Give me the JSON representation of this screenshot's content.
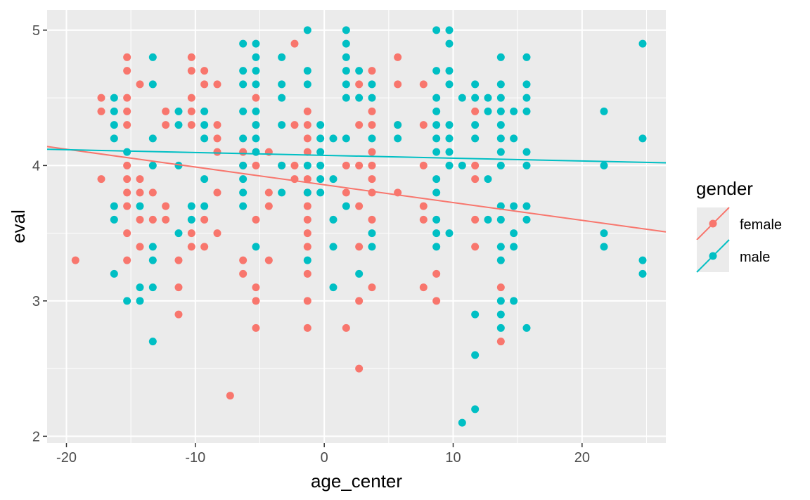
{
  "chart_data": {
    "type": "scatter",
    "xlabel": "age_center",
    "ylabel": "eval",
    "xlim": [
      -21.5,
      26.5
    ],
    "ylim": [
      1.95,
      5.15
    ],
    "x_ticks": [
      -20,
      -10,
      0,
      10,
      20
    ],
    "x_tick_labels": [
      "-20",
      "-10",
      "0",
      "10",
      "20"
    ],
    "y_ticks": [
      2,
      3,
      4,
      5
    ],
    "y_tick_labels": [
      "2",
      "3",
      "4",
      "5"
    ],
    "grid": true,
    "legend": {
      "title": "gender",
      "position": "right"
    },
    "series": [
      {
        "name": "female",
        "color": "#F8766D",
        "fit_line": {
          "x": [
            -21.5,
            26.5
          ],
          "y": [
            4.14,
            3.51
          ]
        },
        "points": [
          [
            -19.3,
            3.3
          ],
          [
            -17.3,
            4.5
          ],
          [
            -17.3,
            4.4
          ],
          [
            -17.3,
            3.9
          ],
          [
            -15.3,
            4.8
          ],
          [
            -15.3,
            4.7
          ],
          [
            -15.3,
            4.5
          ],
          [
            -15.3,
            4.4
          ],
          [
            -15.3,
            4.3
          ],
          [
            -15.3,
            4.0
          ],
          [
            -15.3,
            3.9
          ],
          [
            -15.3,
            3.8
          ],
          [
            -15.3,
            3.7
          ],
          [
            -15.3,
            3.5
          ],
          [
            -15.3,
            3.3
          ],
          [
            -14.3,
            4.6
          ],
          [
            -14.3,
            3.9
          ],
          [
            -14.3,
            3.8
          ],
          [
            -14.3,
            3.6
          ],
          [
            -14.3,
            3.4
          ],
          [
            -13.3,
            3.8
          ],
          [
            -13.3,
            3.6
          ],
          [
            -12.3,
            4.4
          ],
          [
            -12.3,
            4.3
          ],
          [
            -12.3,
            3.7
          ],
          [
            -12.3,
            3.6
          ],
          [
            -11.3,
            3.3
          ],
          [
            -11.3,
            3.1
          ],
          [
            -11.3,
            2.9
          ],
          [
            -10.3,
            4.8
          ],
          [
            -10.3,
            4.7
          ],
          [
            -10.3,
            4.5
          ],
          [
            -10.3,
            4.4
          ],
          [
            -10.3,
            4.3
          ],
          [
            -10.3,
            3.5
          ],
          [
            -10.3,
            3.4
          ],
          [
            -9.3,
            4.7
          ],
          [
            -9.3,
            4.6
          ],
          [
            -9.3,
            3.6
          ],
          [
            -9.3,
            3.4
          ],
          [
            -8.3,
            4.6
          ],
          [
            -8.3,
            4.3
          ],
          [
            -8.3,
            4.2
          ],
          [
            -8.3,
            4.1
          ],
          [
            -8.3,
            3.8
          ],
          [
            -8.3,
            3.5
          ],
          [
            -7.3,
            2.3
          ],
          [
            -6.3,
            4.1
          ],
          [
            -6.3,
            4.0
          ],
          [
            -6.3,
            3.3
          ],
          [
            -6.3,
            3.2
          ],
          [
            -5.3,
            4.5
          ],
          [
            -5.3,
            4.3
          ],
          [
            -5.3,
            4.1
          ],
          [
            -5.3,
            4.0
          ],
          [
            -5.3,
            3.6
          ],
          [
            -5.3,
            3.1
          ],
          [
            -5.3,
            3.0
          ],
          [
            -5.3,
            2.8
          ],
          [
            -4.3,
            4.1
          ],
          [
            -4.3,
            3.8
          ],
          [
            -4.3,
            3.7
          ],
          [
            -4.3,
            3.3
          ],
          [
            -3.3,
            4.0
          ],
          [
            -2.3,
            4.9
          ],
          [
            -2.3,
            4.3
          ],
          [
            -2.3,
            4.0
          ],
          [
            -2.3,
            3.9
          ],
          [
            -1.3,
            4.4
          ],
          [
            -1.3,
            4.3
          ],
          [
            -1.3,
            4.2
          ],
          [
            -1.3,
            4.1
          ],
          [
            -1.3,
            3.9
          ],
          [
            -1.3,
            3.8
          ],
          [
            -1.3,
            3.7
          ],
          [
            -1.3,
            3.6
          ],
          [
            -1.3,
            3.5
          ],
          [
            -1.3,
            3.4
          ],
          [
            -1.3,
            3.2
          ],
          [
            -1.3,
            3.0
          ],
          [
            -1.3,
            2.8
          ],
          [
            1.7,
            4.0
          ],
          [
            1.7,
            3.8
          ],
          [
            1.7,
            2.8
          ],
          [
            2.7,
            4.6
          ],
          [
            2.7,
            4.3
          ],
          [
            2.7,
            4.0
          ],
          [
            2.7,
            3.7
          ],
          [
            2.7,
            3.4
          ],
          [
            2.7,
            3.0
          ],
          [
            2.7,
            2.5
          ],
          [
            3.7,
            4.7
          ],
          [
            3.7,
            4.4
          ],
          [
            3.7,
            4.3
          ],
          [
            3.7,
            4.1
          ],
          [
            3.7,
            4.0
          ],
          [
            3.7,
            3.9
          ],
          [
            3.7,
            3.8
          ],
          [
            3.7,
            3.6
          ],
          [
            3.7,
            3.1
          ],
          [
            5.7,
            4.8
          ],
          [
            5.7,
            4.6
          ],
          [
            5.7,
            4.3
          ],
          [
            5.7,
            3.8
          ],
          [
            7.7,
            4.6
          ],
          [
            7.7,
            4.3
          ],
          [
            7.7,
            4.0
          ],
          [
            7.7,
            3.7
          ],
          [
            7.7,
            3.6
          ],
          [
            7.7,
            3.1
          ],
          [
            8.7,
            3.2
          ],
          [
            8.7,
            3.0
          ],
          [
            11.7,
            4.4
          ],
          [
            11.7,
            4.0
          ],
          [
            11.7,
            3.9
          ],
          [
            11.7,
            3.6
          ],
          [
            11.7,
            3.4
          ],
          [
            13.7,
            3.1
          ],
          [
            13.7,
            2.7
          ]
        ]
      },
      {
        "name": "male",
        "color": "#00BFC4",
        "fit_line": {
          "x": [
            -21.5,
            26.5
          ],
          "y": [
            4.12,
            4.02
          ]
        },
        "points": [
          [
            -16.3,
            4.5
          ],
          [
            -16.3,
            4.4
          ],
          [
            -16.3,
            4.3
          ],
          [
            -16.3,
            4.2
          ],
          [
            -16.3,
            3.7
          ],
          [
            -16.3,
            3.6
          ],
          [
            -16.3,
            3.2
          ],
          [
            -15.3,
            4.1
          ],
          [
            -15.3,
            3.0
          ],
          [
            -14.3,
            3.7
          ],
          [
            -14.3,
            3.1
          ],
          [
            -14.3,
            3.0
          ],
          [
            -13.3,
            4.8
          ],
          [
            -13.3,
            4.6
          ],
          [
            -13.3,
            4.2
          ],
          [
            -13.3,
            4.0
          ],
          [
            -13.3,
            3.4
          ],
          [
            -13.3,
            3.3
          ],
          [
            -13.3,
            3.1
          ],
          [
            -13.3,
            2.7
          ],
          [
            -11.3,
            4.4
          ],
          [
            -11.3,
            4.3
          ],
          [
            -11.3,
            4.0
          ],
          [
            -11.3,
            3.5
          ],
          [
            -10.3,
            3.7
          ],
          [
            -10.3,
            3.6
          ],
          [
            -9.3,
            4.4
          ],
          [
            -9.3,
            4.3
          ],
          [
            -9.3,
            4.2
          ],
          [
            -9.3,
            3.9
          ],
          [
            -9.3,
            3.7
          ],
          [
            -6.3,
            4.9
          ],
          [
            -6.3,
            4.7
          ],
          [
            -6.3,
            4.6
          ],
          [
            -6.3,
            4.4
          ],
          [
            -6.3,
            4.2
          ],
          [
            -6.3,
            4.0
          ],
          [
            -6.3,
            3.9
          ],
          [
            -6.3,
            3.8
          ],
          [
            -6.3,
            3.7
          ],
          [
            -5.3,
            4.9
          ],
          [
            -5.3,
            4.8
          ],
          [
            -5.3,
            4.7
          ],
          [
            -5.3,
            4.6
          ],
          [
            -5.3,
            4.4
          ],
          [
            -5.3,
            4.3
          ],
          [
            -5.3,
            4.2
          ],
          [
            -5.3,
            4.1
          ],
          [
            -5.3,
            3.4
          ],
          [
            -3.3,
            4.8
          ],
          [
            -3.3,
            4.6
          ],
          [
            -3.3,
            4.5
          ],
          [
            -3.3,
            4.3
          ],
          [
            -3.3,
            4.0
          ],
          [
            -3.3,
            3.8
          ],
          [
            -1.3,
            5.0
          ],
          [
            -1.3,
            4.7
          ],
          [
            -1.3,
            4.6
          ],
          [
            -1.3,
            4.0
          ],
          [
            -1.3,
            3.8
          ],
          [
            -1.3,
            3.3
          ],
          [
            -0.3,
            4.3
          ],
          [
            -0.3,
            4.2
          ],
          [
            -0.3,
            4.1
          ],
          [
            -0.3,
            4.0
          ],
          [
            -0.3,
            3.9
          ],
          [
            -0.3,
            3.8
          ],
          [
            0.7,
            4.2
          ],
          [
            0.7,
            3.9
          ],
          [
            0.7,
            3.6
          ],
          [
            0.7,
            3.4
          ],
          [
            0.7,
            3.1
          ],
          [
            1.7,
            5.0
          ],
          [
            1.7,
            4.9
          ],
          [
            1.7,
            4.8
          ],
          [
            1.7,
            4.7
          ],
          [
            1.7,
            4.6
          ],
          [
            1.7,
            4.5
          ],
          [
            1.7,
            4.2
          ],
          [
            1.7,
            3.7
          ],
          [
            2.7,
            4.7
          ],
          [
            2.7,
            4.5
          ],
          [
            2.7,
            3.2
          ],
          [
            3.7,
            4.6
          ],
          [
            3.7,
            4.5
          ],
          [
            3.7,
            4.2
          ],
          [
            3.7,
            3.5
          ],
          [
            3.7,
            3.4
          ],
          [
            5.7,
            4.3
          ],
          [
            5.7,
            4.2
          ],
          [
            8.7,
            5.0
          ],
          [
            8.7,
            4.7
          ],
          [
            8.7,
            4.5
          ],
          [
            8.7,
            4.4
          ],
          [
            8.7,
            4.3
          ],
          [
            8.7,
            4.2
          ],
          [
            8.7,
            4.1
          ],
          [
            8.7,
            3.9
          ],
          [
            8.7,
            3.8
          ],
          [
            8.7,
            3.6
          ],
          [
            8.7,
            3.5
          ],
          [
            8.7,
            3.4
          ],
          [
            9.7,
            5.0
          ],
          [
            9.7,
            4.9
          ],
          [
            9.7,
            4.7
          ],
          [
            9.7,
            4.6
          ],
          [
            9.7,
            4.3
          ],
          [
            9.7,
            4.2
          ],
          [
            9.7,
            4.1
          ],
          [
            9.7,
            4.0
          ],
          [
            9.7,
            3.5
          ],
          [
            10.7,
            4.5
          ],
          [
            10.7,
            4.0
          ],
          [
            10.7,
            2.1
          ],
          [
            11.7,
            4.6
          ],
          [
            11.7,
            4.5
          ],
          [
            11.7,
            4.3
          ],
          [
            11.7,
            4.2
          ],
          [
            11.7,
            2.9
          ],
          [
            11.7,
            2.6
          ],
          [
            11.7,
            2.2
          ],
          [
            12.7,
            4.5
          ],
          [
            12.7,
            4.4
          ],
          [
            12.7,
            3.9
          ],
          [
            12.7,
            3.6
          ],
          [
            13.7,
            4.8
          ],
          [
            13.7,
            4.6
          ],
          [
            13.7,
            4.5
          ],
          [
            13.7,
            4.4
          ],
          [
            13.7,
            4.3
          ],
          [
            13.7,
            4.2
          ],
          [
            13.7,
            4.1
          ],
          [
            13.7,
            4.0
          ],
          [
            13.7,
            3.7
          ],
          [
            13.7,
            3.6
          ],
          [
            13.7,
            3.4
          ],
          [
            13.7,
            3.3
          ],
          [
            13.7,
            3.0
          ],
          [
            13.7,
            2.9
          ],
          [
            13.7,
            2.8
          ],
          [
            14.7,
            4.4
          ],
          [
            14.7,
            4.2
          ],
          [
            14.7,
            3.7
          ],
          [
            14.7,
            3.5
          ],
          [
            14.7,
            3.4
          ],
          [
            14.7,
            3.0
          ],
          [
            15.7,
            4.8
          ],
          [
            15.7,
            4.6
          ],
          [
            15.7,
            4.5
          ],
          [
            15.7,
            4.4
          ],
          [
            15.7,
            4.1
          ],
          [
            15.7,
            4.0
          ],
          [
            15.7,
            3.7
          ],
          [
            15.7,
            3.6
          ],
          [
            15.7,
            2.8
          ],
          [
            21.7,
            4.4
          ],
          [
            21.7,
            4.0
          ],
          [
            21.7,
            3.5
          ],
          [
            21.7,
            3.4
          ],
          [
            24.7,
            4.9
          ],
          [
            24.7,
            4.2
          ],
          [
            24.7,
            3.3
          ],
          [
            24.7,
            3.2
          ]
        ]
      }
    ]
  }
}
